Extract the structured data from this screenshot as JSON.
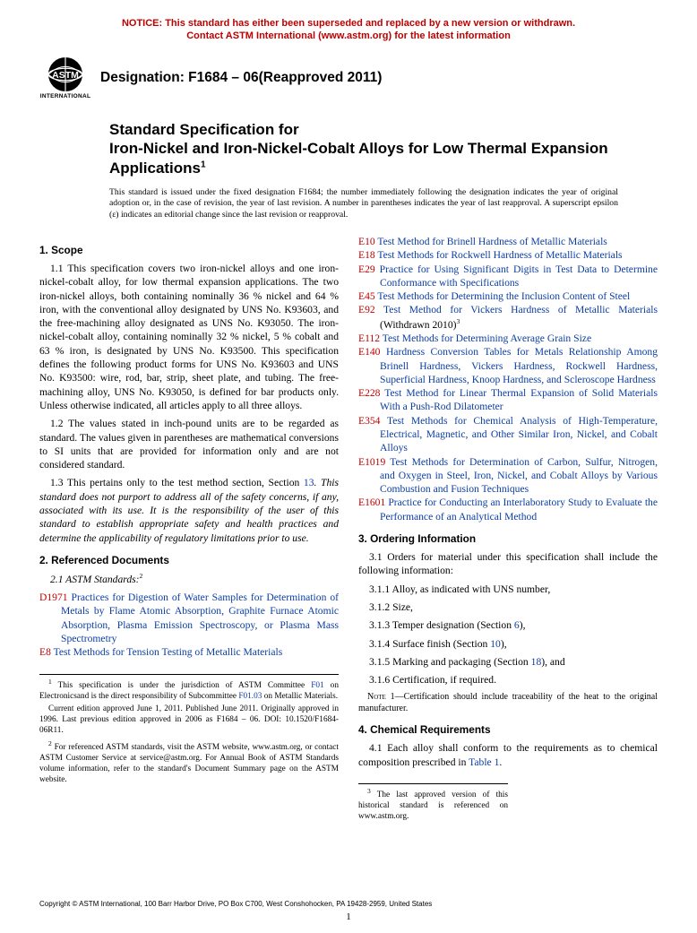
{
  "colors": {
    "notice_red": "#c00000",
    "link_blue": "#0a3da3",
    "code_red": "#c00000",
    "text": "#000000",
    "background": "#ffffff"
  },
  "typography": {
    "body_family": "Times New Roman",
    "heading_family": "Arial",
    "body_size_pt": 11.6,
    "heading_size_pt": 11.8,
    "title_size_pt": 17,
    "designation_size_pt": 15.5,
    "notice_size_pt": 11,
    "footnote_size_pt": 9.3
  },
  "notice": {
    "line1": "NOTICE: This standard has either been superseded and replaced by a new version or withdrawn.",
    "line2": "Contact ASTM International (www.astm.org) for the latest information"
  },
  "logo_label": "INTERNATIONAL",
  "designation": "Designation: F1684 – 06(Reapproved 2011)",
  "title_lead": "Standard Specification for",
  "title_main": "Iron-Nickel and Iron-Nickel-Cobalt Alloys for Low Thermal Expansion Applications",
  "title_super": "1",
  "issuance": "This standard is issued under the fixed designation F1684; the number immediately following the designation indicates the year of original adoption or, in the case of revision, the year of last revision. A number in parentheses indicates the year of last reapproval. A superscript epsilon (ε) indicates an editorial change since the last revision or reapproval.",
  "sections": {
    "scope_head": "1. Scope",
    "scope_1": "1.1 This specification covers two iron-nickel alloys and one iron-nickel-cobalt alloy, for low thermal expansion applications. The two iron-nickel alloys, both containing nominally 36 % nickel and 64 % iron, with the conventional alloy designated by UNS No. K93603, and the free-machining alloy designated as UNS No. K93050. The iron-nickel-cobalt alloy, containing nominally 32 % nickel, 5 % cobalt and 63 % iron, is designated by UNS No. K93500. This specification defines the following product forms for UNS No. K93603 and UNS No. K93500: wire, rod, bar, strip, sheet plate, and tubing. The free-machining alloy, UNS No. K93050, is defined for bar products only. Unless otherwise indicated, all articles apply to all three alloys.",
    "scope_2": "1.2 The values stated in inch-pound units are to be regarded as standard. The values given in parentheses are mathematical conversions to SI units that are provided for information only and are not considered standard.",
    "scope_3a": "1.3 This pertains only to the test method section, Section ",
    "scope_3_link": "13",
    "scope_3b": ". This standard does not purport to address all of the safety concerns, if any, associated with its use. It is the responsibility of the user of this standard to establish appropriate safety and health practices and determine the applicability of regulatory limitations prior to use.",
    "refdocs_head": "2. Referenced Documents",
    "refdocs_sub": "2.1 ASTM Standards:",
    "refdocs_sup": "2",
    "ordering_head": "3. Ordering Information",
    "ordering_1": "3.1 Orders for material under this specification shall include the following information:",
    "ordering_11": "3.1.1 Alloy, as indicated with UNS number,",
    "ordering_12": "3.1.2 Size,",
    "ordering_13a": "3.1.3 Temper designation (Section ",
    "ordering_13_link": "6",
    "ordering_13b": "),",
    "ordering_14a": "3.1.4 Surface finish (Section ",
    "ordering_14_link": "10",
    "ordering_14b": "),",
    "ordering_15a": "3.1.5 Marking and packaging (Section ",
    "ordering_15_link": "18",
    "ordering_15b": "), and",
    "ordering_16": "3.1.6 Certification, if required.",
    "note1_label": "Note 1—",
    "note1": "Certification should include traceability of the heat to the original manufacturer.",
    "chem_head": "4. Chemical Requirements",
    "chem_1a": "4.1 Each alloy shall conform to the requirements as to chemical composition prescribed in ",
    "chem_1_link": "Table 1",
    "chem_1b": "."
  },
  "refs_left": [
    {
      "code": "D1971",
      "title": "Practices for Digestion of Water Samples for Determination of Metals by Flame Atomic Absorption, Graphite Furnace Atomic Absorption, Plasma Emission Spectroscopy, or Plasma Mass Spectrometry"
    },
    {
      "code": "E8",
      "title": "Test Methods for Tension Testing of Metallic Materials"
    }
  ],
  "refs_right": [
    {
      "code": "E10",
      "title": "Test Method for Brinell Hardness of Metallic Materials"
    },
    {
      "code": "E18",
      "title": "Test Methods for Rockwell Hardness of Metallic Materials"
    },
    {
      "code": "E29",
      "title": "Practice for Using Significant Digits in Test Data to Determine Conformance with Specifications"
    },
    {
      "code": "E45",
      "title": "Test Methods for Determining the Inclusion Content of Steel"
    },
    {
      "code": "E92",
      "title": "Test Method for Vickers Hardness of Metallic Materials",
      "trail": " (Withdrawn 2010)",
      "trail_sup": "3"
    },
    {
      "code": "E112",
      "title": "Test Methods for Determining Average Grain Size"
    },
    {
      "code": "E140",
      "title": "Hardness Conversion Tables for Metals Relationship Among Brinell Hardness, Vickers Hardness, Rockwell Hardness, Superficial Hardness, Knoop Hardness, and Scleroscope Hardness"
    },
    {
      "code": "E228",
      "title": "Test Method for Linear Thermal Expansion of Solid Materials With a Push-Rod Dilatometer"
    },
    {
      "code": "E354",
      "title": "Test Methods for Chemical Analysis of High-Temperature, Electrical, Magnetic, and Other Similar Iron, Nickel, and Cobalt Alloys"
    },
    {
      "code": "E1019",
      "title": "Test Methods for Determination of Carbon, Sulfur, Nitrogen, and Oxygen in Steel, Iron, Nickel, and Cobalt Alloys by Various Combustion and Fusion Techniques"
    },
    {
      "code": "E1601",
      "title": "Practice for Conducting an Interlaboratory Study to Evaluate the Performance of an Analytical Method"
    }
  ],
  "footnotes_left": {
    "f1a": "1",
    "f1": " This specification is under the jurisdiction of ASTM Committee ",
    "f1_link": "F01",
    "f1b": " on Electronicsand is the direct responsibility of Subcommittee ",
    "f1_link2": "F01.03",
    "f1c": " on Metallic Materials.",
    "f1_p2": "Current edition approved June 1, 2011. Published June 2011. Originally approved in 1996. Last previous edition approved in 2006 as F1684 – 06. DOI: 10.1520/F1684-06R11.",
    "f2a": "2",
    "f2": " For referenced ASTM standards, visit the ASTM website, www.astm.org, or contact ASTM Customer Service at service@astm.org. For Annual Book of ASTM Standards volume information, refer to the standard's Document Summary page on the ASTM website."
  },
  "footnotes_right": {
    "f3a": "3",
    "f3": " The last approved version of this historical standard is referenced on www.astm.org."
  },
  "copyright": "Copyright © ASTM International, 100 Barr Harbor Drive, PO Box C700, West Conshohocken, PA 19428-2959, United States",
  "page_number": "1"
}
